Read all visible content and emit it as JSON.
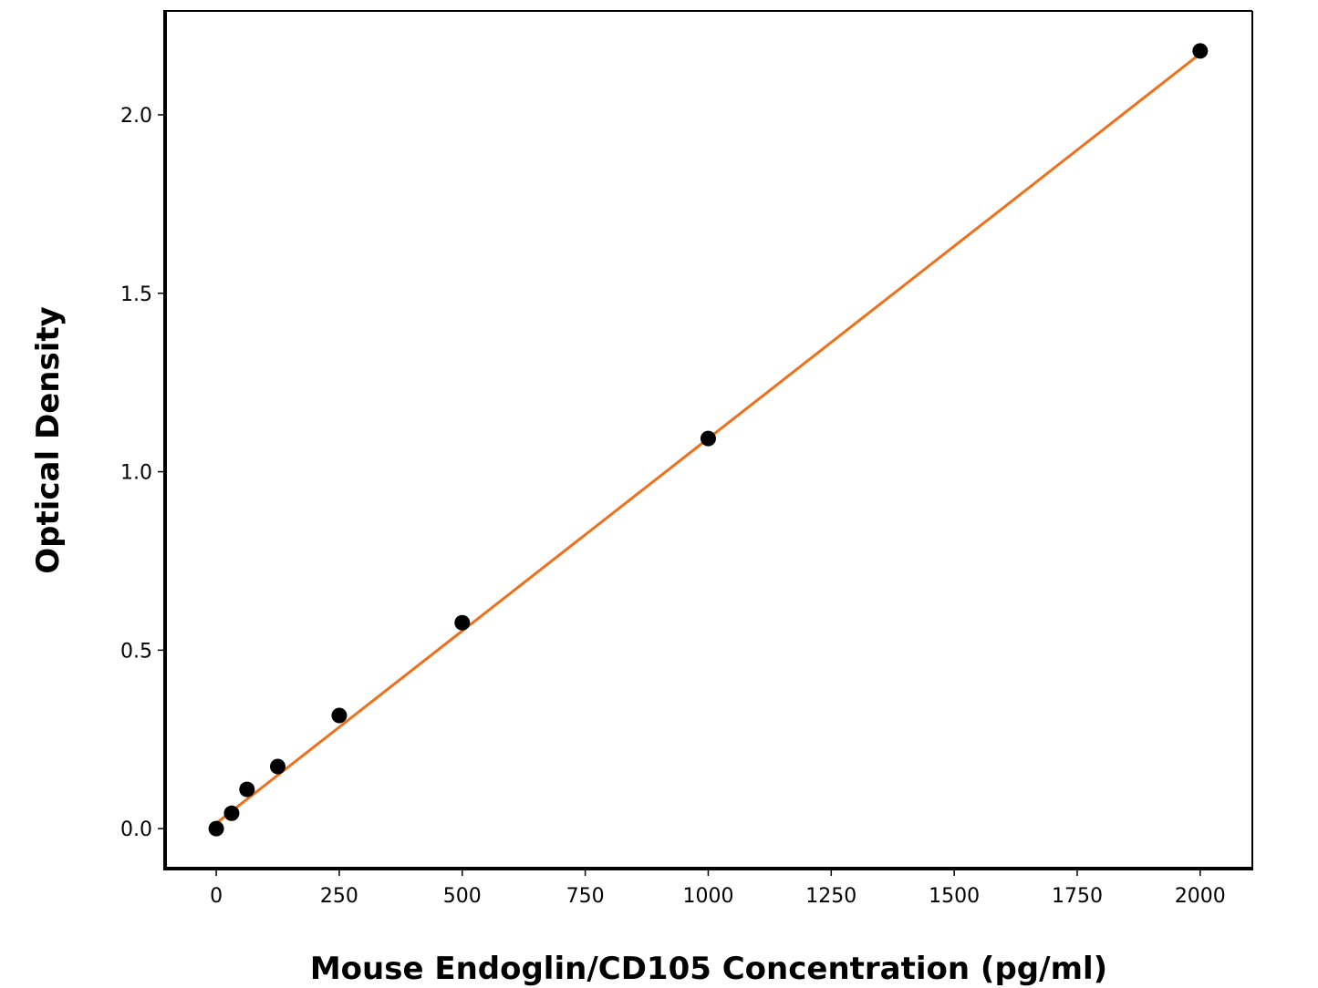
{
  "chart_data": {
    "type": "scatter",
    "xlabel": "Mouse Endoglin/CD105 Concentration (pg/ml)",
    "ylabel": "Optical Density",
    "series": [
      {
        "type": "scatter",
        "color": "#000000",
        "x": [
          0,
          31.25,
          62.5,
          125,
          250,
          500,
          1000,
          2000
        ],
        "values": [
          0,
          0.043,
          0.11,
          0.174,
          0.317,
          0.577,
          1.093,
          2.179
        ]
      },
      {
        "type": "line",
        "color": "#f0701a",
        "x": [
          0,
          2000
        ],
        "values": [
          0.015,
          2.171
        ]
      }
    ],
    "xlim": [
      -104,
      2106
    ],
    "ylim": [
      -0.112,
      2.291
    ],
    "xticks": [
      0,
      250,
      500,
      750,
      1000,
      1250,
      1500,
      1750,
      2000
    ],
    "yticks": [
      {
        "value": 0,
        "label": "0.0"
      },
      0.5,
      {
        "value": 1,
        "label": "1.0"
      },
      1.5,
      {
        "value": 2,
        "label": "2.0"
      }
    ]
  }
}
